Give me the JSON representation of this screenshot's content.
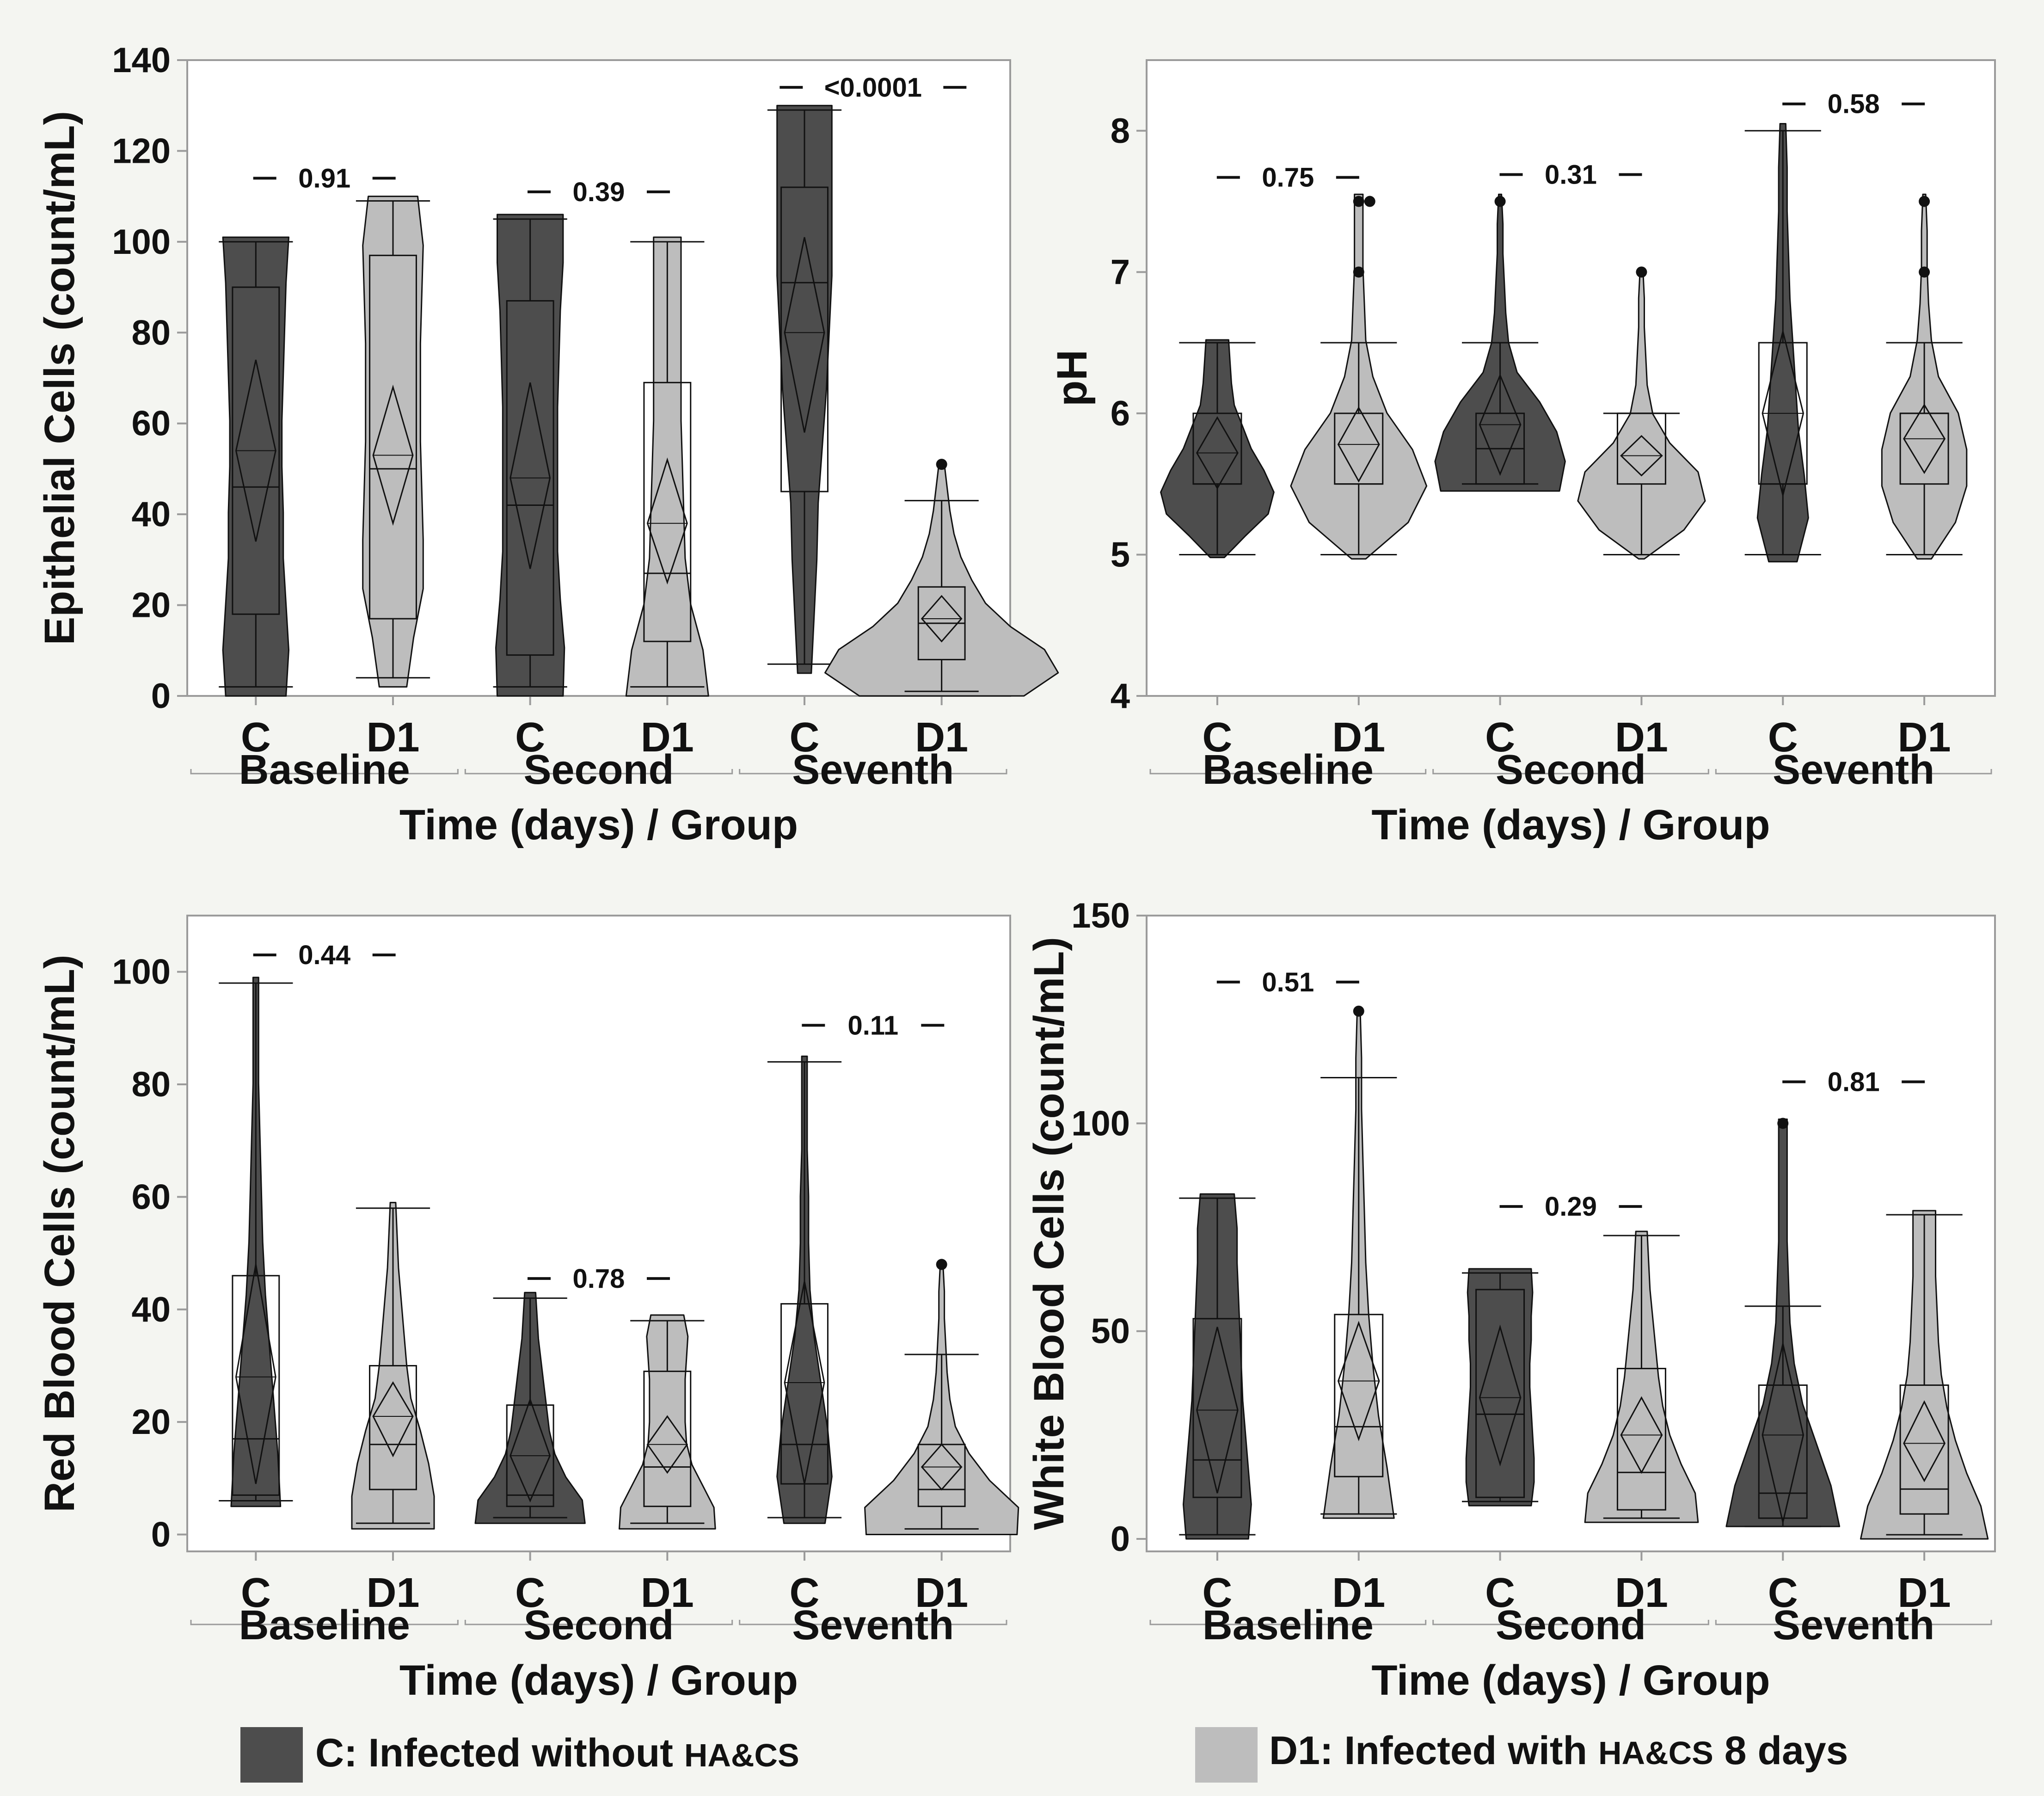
{
  "chart_data": [
    {
      "type": "violin",
      "ylabel": "Epithelial Cells (count/mL)",
      "xlabel": "Time (days) / Group",
      "ylim": [
        0,
        140
      ],
      "yticks": [
        0,
        20,
        40,
        60,
        80,
        100,
        120,
        140
      ],
      "ytick_labels": [
        "0",
        "20",
        "40",
        "60",
        "80",
        "100",
        "120",
        "140"
      ],
      "groups": [
        {
          "label": "Baseline",
          "p_value": "0.91",
          "p_y": 114
        },
        {
          "label": "Second",
          "p_value": "0.39",
          "p_y": 111
        },
        {
          "label": "Seventh",
          "p_value": "<0.0001",
          "p_y": 134
        }
      ],
      "items": [
        {
          "group": "C",
          "min": 2,
          "q1": 18,
          "median": 46,
          "q3": 90,
          "max": 100,
          "mean": 54,
          "ci": [
            34,
            74
          ],
          "outliers": [],
          "vmin": 0,
          "vmax": 101,
          "shape": [
            0.22,
            0.24,
            0.22,
            0.2,
            0.2,
            0.19,
            0.19,
            0.2,
            0.21,
            0.22,
            0.24
          ]
        },
        {
          "group": "D1",
          "min": 4,
          "q1": 17,
          "median": 50,
          "q3": 97,
          "max": 109,
          "mean": 53,
          "ci": [
            38,
            68
          ],
          "outliers": [],
          "vmin": 2,
          "vmax": 110,
          "shape": [
            0.1,
            0.15,
            0.22,
            0.22,
            0.21,
            0.2,
            0.2,
            0.2,
            0.21,
            0.22,
            0.18
          ]
        },
        {
          "group": "C",
          "min": 2,
          "q1": 9,
          "median": 42,
          "q3": 87,
          "max": 105,
          "mean": 48,
          "ci": [
            28,
            69
          ],
          "outliers": [],
          "vmin": 0,
          "vmax": 106,
          "shape": [
            0.24,
            0.25,
            0.22,
            0.2,
            0.2,
            0.2,
            0.2,
            0.21,
            0.22,
            0.24,
            0.24
          ]
        },
        {
          "group": "D1",
          "min": 2,
          "q1": 12,
          "median": 27,
          "q3": 69,
          "max": 100,
          "mean": 38,
          "ci": [
            25,
            52
          ],
          "outliers": [],
          "vmin": 0,
          "vmax": 101,
          "shape": [
            0.3,
            0.26,
            0.17,
            0.13,
            0.12,
            0.11,
            0.1,
            0.1,
            0.1,
            0.1,
            0.1
          ]
        },
        {
          "group": "C",
          "min": 7,
          "q1": 45,
          "median": 91,
          "q3": 112,
          "max": 129,
          "mean": 80,
          "ci": [
            58,
            101
          ],
          "outliers": [],
          "vmin": 5,
          "vmax": 130,
          "shape": [
            0.05,
            0.07,
            0.09,
            0.1,
            0.13,
            0.16,
            0.18,
            0.2,
            0.2,
            0.2,
            0.2
          ]
        },
        {
          "group": "D1",
          "min": 1,
          "q1": 8,
          "median": 16,
          "q3": 24,
          "max": 43,
          "mean": 17,
          "ci": [
            12,
            22
          ],
          "outliers": [
            51
          ],
          "vmin": 0,
          "vmax": 51,
          "shape": [
            0.6,
            0.85,
            0.75,
            0.5,
            0.32,
            0.22,
            0.14,
            0.09,
            0.06,
            0.04,
            0.02
          ]
        }
      ]
    },
    {
      "type": "violin",
      "ylabel": "pH",
      "xlabel": "Time (days) / Group",
      "ylim": [
        4,
        8.5
      ],
      "yticks": [
        4,
        5,
        6,
        7,
        8
      ],
      "ytick_labels": [
        "4",
        "5",
        "6",
        "7",
        "8"
      ],
      "groups": [
        {
          "label": "Baseline",
          "p_value": "0.75",
          "p_y": 7.67
        },
        {
          "label": "Second",
          "p_value": "0.31",
          "p_y": 7.69
        },
        {
          "label": "Seventh",
          "p_value": "0.58",
          "p_y": 8.19
        }
      ],
      "items": [
        {
          "group": "C",
          "min": 5,
          "q1": 5.5,
          "median": 5.5,
          "q3": 6,
          "max": 6.5,
          "mean": 5.72,
          "ci": [
            5.47,
            5.97
          ],
          "outliers": [],
          "vmin": 4.98,
          "vmax": 6.52,
          "shape": [
            0.05,
            0.2,
            0.36,
            0.4,
            0.33,
            0.24,
            0.18,
            0.12,
            0.1,
            0.09,
            0.08
          ]
        },
        {
          "group": "D1",
          "min": 5,
          "q1": 5.5,
          "median": 5.5,
          "q3": 6,
          "max": 6.5,
          "mean": 5.78,
          "ci": [
            5.52,
            6.04
          ],
          "outliers": [
            7,
            7.5,
            7.5
          ],
          "vmin": 4.97,
          "vmax": 7.55,
          "shape": [
            0.05,
            0.35,
            0.48,
            0.38,
            0.2,
            0.1,
            0.05,
            0.04,
            0.03,
            0.03,
            0.03
          ]
        },
        {
          "group": "C",
          "min": 5.5,
          "q1": 5.5,
          "median": 5.75,
          "q3": 6,
          "max": 6.5,
          "mean": 5.92,
          "ci": [
            5.57,
            6.27
          ],
          "outliers": [
            7.5
          ],
          "vmin": 5.45,
          "vmax": 7.55,
          "shape": [
            0.42,
            0.46,
            0.4,
            0.28,
            0.12,
            0.06,
            0.04,
            0.03,
            0.02,
            0.02,
            0.01
          ]
        },
        {
          "group": "D1",
          "min": 5,
          "q1": 5.5,
          "median": 6,
          "q3": 6,
          "max": 6,
          "mean": 5.7,
          "ci": [
            5.56,
            5.84
          ],
          "outliers": [
            7
          ],
          "vmin": 4.97,
          "vmax": 7.02,
          "shape": [
            0.02,
            0.3,
            0.45,
            0.4,
            0.2,
            0.08,
            0.04,
            0.03,
            0.02,
            0.02,
            0.01
          ]
        },
        {
          "group": "C",
          "min": 5,
          "q1": 5.5,
          "median": 5.5,
          "q3": 6.5,
          "max": 8,
          "mean": 6.0,
          "ci": [
            5.42,
            6.58
          ],
          "outliers": [],
          "vmin": 4.95,
          "vmax": 8.05,
          "shape": [
            0.1,
            0.18,
            0.15,
            0.11,
            0.09,
            0.07,
            0.05,
            0.04,
            0.03,
            0.03,
            0.02
          ]
        },
        {
          "group": "D1",
          "min": 5,
          "q1": 5.5,
          "median": 6,
          "q3": 6,
          "max": 6.5,
          "mean": 5.82,
          "ci": [
            5.58,
            6.06
          ],
          "outliers": [
            7,
            7.5
          ],
          "vmin": 4.97,
          "vmax": 7.55,
          "shape": [
            0.05,
            0.22,
            0.3,
            0.3,
            0.24,
            0.1,
            0.05,
            0.03,
            0.02,
            0.02,
            0.01
          ]
        }
      ]
    },
    {
      "type": "violin",
      "ylabel": "Red Blood Cells (count/mL)",
      "xlabel": "Time (days) / Group",
      "ylim": [
        -3,
        110
      ],
      "yticks": [
        0,
        20,
        40,
        60,
        80,
        100
      ],
      "ytick_labels": [
        "0",
        "20",
        "40",
        "60",
        "80",
        "100"
      ],
      "groups": [
        {
          "label": "Baseline",
          "p_value": "0.44",
          "p_y": 103
        },
        {
          "label": "Second",
          "p_value": "0.78",
          "p_y": 45.5
        },
        {
          "label": "Seventh",
          "p_value": "0.11",
          "p_y": 90.5
        }
      ],
      "items": [
        {
          "group": "C",
          "min": 6,
          "q1": 7,
          "median": 17,
          "q3": 46,
          "max": 98,
          "mean": 28,
          "ci": [
            9,
            48
          ],
          "outliers": [],
          "vmin": 5,
          "vmax": 99,
          "shape": [
            0.18,
            0.16,
            0.13,
            0.1,
            0.07,
            0.05,
            0.04,
            0.03,
            0.02,
            0.02,
            0.02
          ]
        },
        {
          "group": "D1",
          "min": 2,
          "q1": 8,
          "median": 16,
          "q3": 30,
          "max": 58,
          "mean": 21,
          "ci": [
            14,
            27
          ],
          "outliers": [],
          "vmin": 1,
          "vmax": 59,
          "shape": [
            0.3,
            0.3,
            0.26,
            0.2,
            0.13,
            0.1,
            0.08,
            0.06,
            0.04,
            0.03,
            0.02
          ]
        },
        {
          "group": "C",
          "min": 3,
          "q1": 5,
          "median": 7,
          "q3": 23,
          "max": 42,
          "mean": 14,
          "ci": [
            6,
            24
          ],
          "outliers": [],
          "vmin": 2,
          "vmax": 43,
          "shape": [
            0.4,
            0.38,
            0.26,
            0.18,
            0.14,
            0.12,
            0.1,
            0.08,
            0.06,
            0.05,
            0.04
          ]
        },
        {
          "group": "D1",
          "min": 2,
          "q1": 5,
          "median": 12,
          "q3": 29,
          "max": 38,
          "mean": 16,
          "ci": [
            11,
            21
          ],
          "outliers": [],
          "vmin": 1,
          "vmax": 39,
          "shape": [
            0.35,
            0.34,
            0.26,
            0.18,
            0.14,
            0.13,
            0.13,
            0.13,
            0.14,
            0.15,
            0.12
          ]
        },
        {
          "group": "C",
          "min": 3,
          "q1": 9,
          "median": 16,
          "q3": 41,
          "max": 84,
          "mean": 27,
          "ci": [
            9,
            45
          ],
          "outliers": [],
          "vmin": 2,
          "vmax": 85,
          "shape": [
            0.15,
            0.2,
            0.17,
            0.12,
            0.07,
            0.04,
            0.03,
            0.03,
            0.02,
            0.02,
            0.02
          ]
        },
        {
          "group": "D1",
          "min": 1,
          "q1": 5,
          "median": 8,
          "q3": 16,
          "max": 32,
          "mean": 12,
          "ci": [
            8,
            16
          ],
          "outliers": [
            48
          ],
          "vmin": 0,
          "vmax": 48,
          "shape": [
            0.55,
            0.56,
            0.35,
            0.2,
            0.1,
            0.06,
            0.04,
            0.03,
            0.02,
            0.02,
            0.01
          ]
        }
      ]
    },
    {
      "type": "violin",
      "ylabel": "White Blood Cells (count/mL)",
      "xlabel": "Time (days) / Group",
      "ylim": [
        -3,
        150
      ],
      "yticks": [
        0,
        50,
        100,
        150
      ],
      "ytick_labels": [
        "0",
        "50",
        "100",
        "150"
      ],
      "groups": [
        {
          "label": "Baseline",
          "p_value": "0.51",
          "p_y": 134
        },
        {
          "label": "Second",
          "p_value": "0.29",
          "p_y": 80
        },
        {
          "label": "Seventh",
          "p_value": "0.81",
          "p_y": 110
        }
      ],
      "items": [
        {
          "group": "C",
          "min": 1,
          "q1": 10,
          "median": 19,
          "q3": 53,
          "max": 82,
          "mean": 31,
          "ci": [
            11,
            51
          ],
          "outliers": [],
          "vmin": 0,
          "vmax": 83,
          "shape": [
            0.22,
            0.24,
            0.22,
            0.2,
            0.18,
            0.17,
            0.16,
            0.15,
            0.14,
            0.14,
            0.12
          ]
        },
        {
          "group": "D1",
          "min": 6,
          "q1": 15,
          "median": 27,
          "q3": 54,
          "max": 111,
          "mean": 38,
          "ci": [
            24,
            52
          ],
          "outliers": [
            127
          ],
          "vmin": 5,
          "vmax": 128,
          "shape": [
            0.25,
            0.2,
            0.14,
            0.1,
            0.07,
            0.05,
            0.04,
            0.03,
            0.02,
            0.02,
            0.01
          ]
        },
        {
          "group": "C",
          "min": 9,
          "q1": 10,
          "median": 30,
          "q3": 60,
          "max": 64,
          "mean": 34,
          "ci": [
            18,
            51
          ],
          "outliers": [],
          "vmin": 8,
          "vmax": 65,
          "shape": [
            0.22,
            0.24,
            0.24,
            0.23,
            0.22,
            0.21,
            0.21,
            0.22,
            0.22,
            0.23,
            0.22
          ]
        },
        {
          "group": "D1",
          "min": 5,
          "q1": 7,
          "median": 16,
          "q3": 41,
          "max": 73,
          "mean": 25,
          "ci": [
            16,
            34
          ],
          "outliers": [],
          "vmin": 4,
          "vmax": 74,
          "shape": [
            0.4,
            0.38,
            0.28,
            0.2,
            0.15,
            0.12,
            0.1,
            0.08,
            0.06,
            0.05,
            0.04
          ]
        },
        {
          "group": "C",
          "min": 3,
          "q1": 5,
          "median": 11,
          "q3": 37,
          "max": 56,
          "mean": 25,
          "ci": [
            4,
            47
          ],
          "outliers": [
            100
          ],
          "vmin": 3,
          "vmax": 101,
          "shape": [
            0.4,
            0.34,
            0.24,
            0.14,
            0.08,
            0.05,
            0.04,
            0.03,
            0.03,
            0.03,
            0.03
          ]
        },
        {
          "group": "D1",
          "min": 1,
          "q1": 6,
          "median": 12,
          "q3": 37,
          "max": 78,
          "mean": 23,
          "ci": [
            14,
            33
          ],
          "outliers": [],
          "vmin": 0,
          "vmax": 79,
          "shape": [
            0.45,
            0.4,
            0.3,
            0.22,
            0.16,
            0.12,
            0.1,
            0.09,
            0.08,
            0.08,
            0.08
          ]
        }
      ]
    }
  ],
  "legend": {
    "c": {
      "label": "C: Infected without ",
      "label_small": "HA&CS"
    },
    "d1": {
      "label": "D1: Infected with ",
      "label_small": "HA&CS",
      "label_tail": " 8 days"
    }
  },
  "colors": {
    "c_fill": "#4d4d4d",
    "d1_fill": "#bdbdbd",
    "background": "#f4f5f1",
    "plot_bg": "#ffffff",
    "frame": "#9b9b9b",
    "line": "#111111"
  }
}
